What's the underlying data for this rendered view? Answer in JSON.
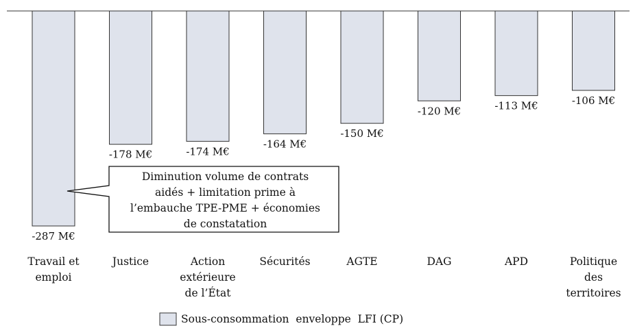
{
  "chart_data": {
    "type": "bar",
    "title": "",
    "xlabel": "",
    "ylabel": "",
    "ylim": [
      -287,
      0
    ],
    "grid": false,
    "legend_position": "bottom",
    "categories": [
      [
        "Travail et",
        "emploi"
      ],
      [
        "Justice"
      ],
      [
        "Action",
        "extérieure",
        "de l’État"
      ],
      [
        "Sécurités"
      ],
      [
        "AGTE"
      ],
      [
        "DAG"
      ],
      [
        "APD"
      ],
      [
        "Politique",
        "des",
        "territoires"
      ]
    ],
    "series": [
      {
        "name": "Sous-consommation  enveloppe  LFI (CP)",
        "values": [
          -287,
          -178,
          -174,
          -164,
          -150,
          -120,
          -113,
          -106
        ],
        "value_labels": [
          "-287 M€",
          "-178 M€",
          "-174 M€",
          "-164 M€",
          "-150 M€",
          "-120 M€",
          "-113 M€",
          "-106 M€"
        ]
      }
    ],
    "colors": {
      "bar_fill": "#dfe3ec",
      "bar_stroke": "#333333",
      "axis": "#333333"
    },
    "annotation": {
      "target_category": 0,
      "lines": [
        "Diminution volume de contrats",
        "aidés + limitation prime à",
        "l’embauche TPE-PME + économies",
        "de constatation"
      ]
    }
  }
}
